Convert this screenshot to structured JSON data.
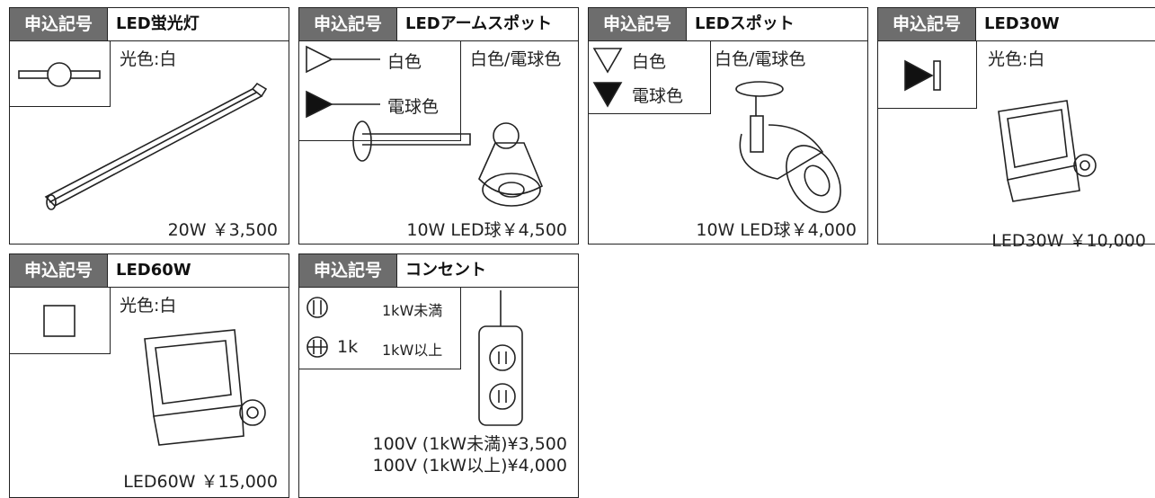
{
  "items": [
    {
      "code_label": "申込記号",
      "name": "LED蛍光灯",
      "color": "光色:白",
      "price": "20W ￥3,500"
    },
    {
      "code_label": "申込記号",
      "name": "LEDアームスポット",
      "legend": [
        "白色",
        "電球色"
      ],
      "color": "白色/電球色",
      "price": "10W LED球￥4,500"
    },
    {
      "code_label": "申込記号",
      "name": "LEDスポット",
      "legend": [
        "白色",
        "電球色"
      ],
      "color": "白色/電球色",
      "price": "10W LED球￥4,000"
    },
    {
      "code_label": "申込記号",
      "name": "LED30W",
      "color": "光色:白",
      "price": "LED30W ￥10,000"
    },
    {
      "code_label": "申込記号",
      "name": "LED60W",
      "color": "光色:白",
      "price": "LED60W ￥15,000"
    },
    {
      "code_label": "申込記号",
      "name": "コンセント",
      "legend": [
        "1kW未満",
        "1kW以上"
      ],
      "symbol_text": "1k",
      "price": [
        "100V (1kW未満)¥3,500",
        "100V (1kW以上)¥4,000"
      ]
    }
  ]
}
